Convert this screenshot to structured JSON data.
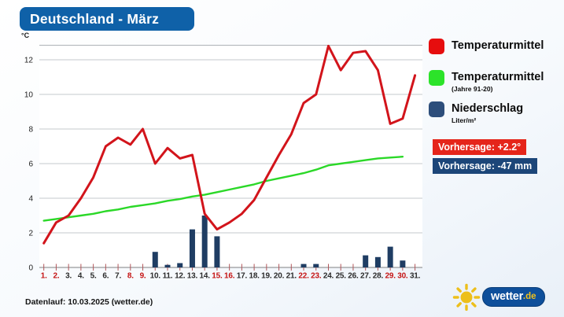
{
  "title": "Deutschland - März",
  "chart_data": {
    "type": "combo",
    "title": "Deutschland - März",
    "unit": "°C",
    "grid": true,
    "ylim": [
      0,
      12.85
    ],
    "y_ticks": [
      0,
      2,
      4,
      6,
      8,
      10,
      12
    ],
    "x_tick_labels": [
      "1.",
      "2.",
      "3.",
      "4.",
      "5.",
      "6.",
      "7.",
      "8.",
      "9.",
      "10.",
      "11.",
      "12.",
      "13.",
      "14.",
      "15.",
      "16.",
      "17.",
      "18.",
      "19.",
      "20.",
      "21.",
      "22.",
      "23.",
      "24.",
      "25.",
      "26.",
      "27.",
      "28.",
      "29.",
      "30.",
      "31."
    ],
    "weekend_days": [
      1,
      2,
      8,
      9,
      15,
      16,
      22,
      23,
      29,
      30
    ],
    "series": [
      {
        "name": "Temperaturmittel",
        "type": "line",
        "color": "#d2141b",
        "values": [
          1.4,
          2.6,
          3.0,
          4.0,
          5.2,
          7.0,
          7.5,
          7.1,
          8.0,
          6.0,
          6.9,
          6.3,
          6.5,
          3.1,
          2.2,
          2.6,
          3.1,
          3.9,
          5.2,
          6.5,
          7.7,
          9.5,
          10.0,
          12.8,
          11.4,
          12.4,
          12.5,
          11.4,
          8.3,
          8.6,
          11.1
        ]
      },
      {
        "name": "Temperaturmittel (Jahre 91-20)",
        "type": "line",
        "color": "#2bd828",
        "values": [
          2.7,
          2.8,
          2.9,
          3.0,
          3.1,
          3.25,
          3.35,
          3.5,
          3.6,
          3.7,
          3.85,
          3.95,
          4.1,
          4.2,
          4.35,
          4.5,
          4.65,
          4.8,
          5.0,
          5.15,
          5.3,
          5.45,
          5.65,
          5.9,
          6.0,
          6.1,
          6.2,
          6.3,
          6.35,
          6.4,
          null
        ]
      },
      {
        "name": "Niederschlag",
        "type": "bar",
        "color": "#1f3d63",
        "values": [
          0,
          0,
          0,
          0,
          0,
          0,
          0,
          0,
          0,
          0.9,
          0.15,
          0.25,
          2.2,
          3.0,
          1.8,
          0,
          0,
          0,
          0,
          0,
          0,
          0.2,
          0.2,
          0,
          0,
          0,
          0.7,
          0.6,
          1.2,
          0.4,
          0
        ]
      }
    ]
  },
  "axis_colors": {
    "weekend_label": "#c51414",
    "weekday_label": "#2b2b2b",
    "tick": "#b0565a",
    "gridline": "#c6c9cc",
    "zero_line": "#98999b",
    "top_border": "#aeb2b6"
  },
  "legend": {
    "items": [
      {
        "label": "Temperaturmittel",
        "sub": "",
        "color": "#e60d0e"
      },
      {
        "label": "Temperaturmittel",
        "sub": "(Jahre 91-20)",
        "color": "#2ce32a"
      },
      {
        "label": "Niederschlag",
        "sub": "Liter/m²",
        "color": "#2d4e7b"
      }
    ]
  },
  "forecast": {
    "temperature": {
      "label": "Vorhersage: +2.2°",
      "color": "#e5251a"
    },
    "precipitation": {
      "label": "Vorhersage: -47 mm",
      "color": "#1c4679"
    }
  },
  "footer": {
    "datenlauf": "Datenlauf: 10.03.2025 (wetter.de)"
  },
  "logo": {
    "brand": "wetter",
    "tld": ".de",
    "sun_color": "#edbf1b"
  }
}
